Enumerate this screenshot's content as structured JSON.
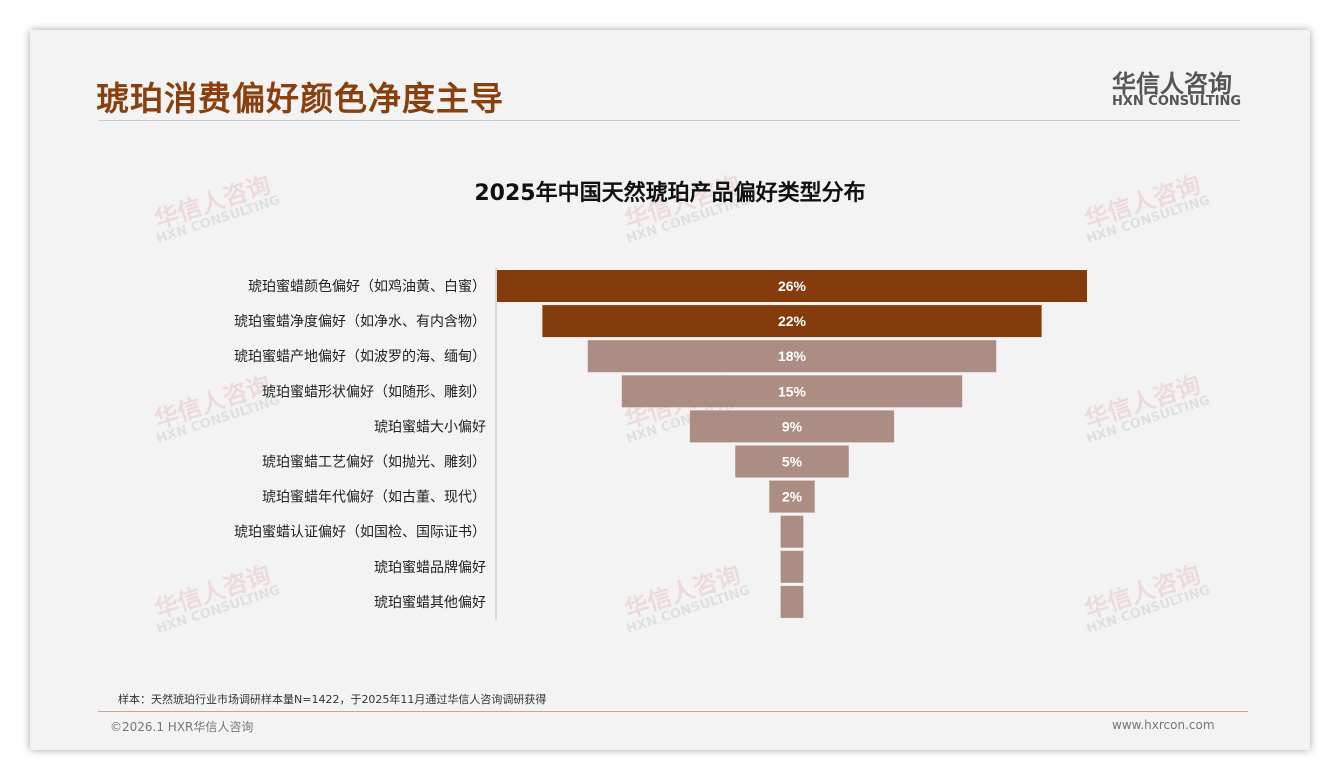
{
  "header": {
    "title": "琥珀消费偏好颜色净度主导",
    "logo_cn": "华信人咨询",
    "logo_en": "HXN CONSULTING"
  },
  "watermark": {
    "cn": "华信人咨询",
    "en": "HXN CONSULTING"
  },
  "colors": {
    "highlight": "#843c0c",
    "normal": "#ac8d83",
    "title": "#8a3f0e"
  },
  "chart_data": {
    "type": "bar",
    "orientation": "horizontal-funnel",
    "title": "2025年中国天然琥珀产品偏好类型分布",
    "categories": [
      "琥珀蜜蜡颜色偏好（如鸡油黄、白蜜）",
      "琥珀蜜蜡净度偏好（如净水、有内含物）",
      "琥珀蜜蜡产地偏好（如波罗的海、缅甸）",
      "琥珀蜜蜡形状偏好（如随形、雕刻）",
      "琥珀蜜蜡大小偏好",
      "琥珀蜜蜡工艺偏好（如抛光、雕刻）",
      "琥珀蜜蜡年代偏好（如古董、现代）",
      "琥珀蜜蜡认证偏好（如国检、国际证书）",
      "琥珀蜜蜡品牌偏好",
      "琥珀蜜蜡其他偏好"
    ],
    "values": [
      26,
      22,
      18,
      15,
      9,
      5,
      2,
      1,
      1,
      1
    ],
    "labels": [
      "26%",
      "22%",
      "18%",
      "15%",
      "9%",
      "5%",
      "2%",
      "",
      "",
      ""
    ],
    "highlighted": [
      true,
      true,
      false,
      false,
      false,
      false,
      false,
      false,
      false,
      false
    ],
    "xlabel": "",
    "ylabel": "",
    "xlim": [
      0,
      26
    ],
    "grid": false
  },
  "footer": {
    "note": "样本：天然琥珀行业市场调研样本量N=1422，于2025年11月通过华信人咨询调研获得",
    "copyright": "©2026.1 HXR华信人咨询",
    "url": "www.hxrcon.com"
  }
}
